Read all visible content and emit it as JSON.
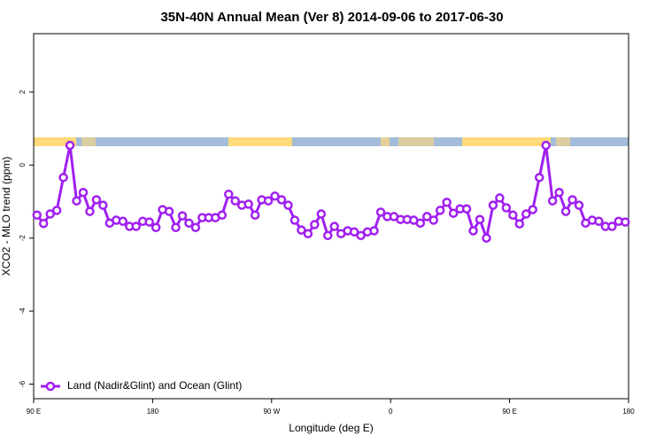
{
  "chart_data": {
    "type": "line",
    "title": "35N-40N Annual Mean (Ver 8)   2014-09-06 to 2017-06-30",
    "xlabel": "Longitude (deg E)",
    "ylabel": "XCO2 - MLO trend (ppm)",
    "x": [
      92.5,
      97.5,
      102.5,
      107.5,
      112.5,
      117.5,
      122.5,
      127.5,
      132.5,
      137.5,
      142.5,
      147.5,
      152.5,
      157.5,
      162.5,
      167.5,
      172.5,
      177.5,
      182.5,
      187.5,
      192.5,
      197.5,
      202.5,
      207.5,
      212.5,
      217.5,
      222.5,
      227.5,
      232.5,
      237.5,
      242.5,
      247.5,
      252.5,
      257.5,
      262.5,
      267.5,
      272.5,
      277.5,
      282.5,
      287.5,
      292.5,
      297.5,
      302.5,
      307.5,
      312.5,
      317.5,
      322.5,
      327.5,
      332.5,
      337.5,
      342.5,
      347.5,
      352.5,
      357.5,
      362.5,
      367.5,
      372.5,
      377.5,
      382.5,
      387.5,
      392.5,
      397.5,
      402.5,
      407.5,
      412.5,
      417.5,
      422.5,
      427.5,
      432.5,
      437.5,
      442.5,
      447.5,
      452.5,
      457.5,
      462.5,
      467.5,
      472.5,
      477.5,
      482.5,
      487.5,
      492.5,
      497.5,
      502.5,
      507.5,
      512.5,
      517.5,
      522.5,
      527.5,
      532.5,
      537.5
    ],
    "series": [
      {
        "name": "Land (Nadir&Glint) and Ocean (Glint)",
        "color": "#a020f0",
        "values": [
          -1.37,
          -1.6,
          -1.34,
          -1.24,
          -0.34,
          0.54,
          -0.98,
          -0.75,
          -1.27,
          -0.95,
          -1.1,
          -1.59,
          -1.51,
          -1.54,
          -1.68,
          -1.68,
          -1.54,
          -1.56,
          -1.71,
          -1.22,
          -1.27,
          -1.71,
          -1.39,
          -1.59,
          -1.71,
          -1.44,
          -1.44,
          -1.44,
          -1.37,
          -0.8,
          -0.98,
          -1.1,
          -1.07,
          -1.37,
          -0.95,
          -0.98,
          -0.85,
          -0.95,
          -1.1,
          -1.51,
          -1.78,
          -1.88,
          -1.63,
          -1.34,
          -1.93,
          -1.68,
          -1.88,
          -1.8,
          -1.83,
          -1.93,
          -1.83,
          -1.8,
          -1.29,
          -1.41,
          -1.41,
          -1.49,
          -1.49,
          -1.51,
          -1.59,
          -1.41,
          -1.51,
          -1.24,
          -1.02,
          -1.32,
          -1.2,
          -1.2,
          -1.8,
          -1.49,
          -2.0,
          -1.1,
          -0.9,
          -1.17,
          -1.37,
          -1.61,
          -1.34,
          -1.22,
          -0.34,
          0.54,
          -0.98,
          -0.75,
          -1.27,
          -0.95,
          -1.1,
          -1.59,
          -1.51,
          -1.54,
          -1.68,
          -1.68,
          -1.54,
          -1.56
        ]
      }
    ],
    "xlim": [
      90,
      540
    ],
    "xticks": [
      {
        "value": 90,
        "label": "90 E"
      },
      180,
      {
        "value": 270,
        "label": "90 W"
      },
      {
        "value": 360,
        "label": "0"
      },
      {
        "value": 450,
        "label": "90 E"
      },
      {
        "value": 540,
        "label": "180"
      }
    ],
    "ylim": [
      -6.4,
      3.6
    ],
    "yticks": [
      -6,
      -4,
      -2,
      0,
      2
    ],
    "legend": "bottom-left"
  }
}
